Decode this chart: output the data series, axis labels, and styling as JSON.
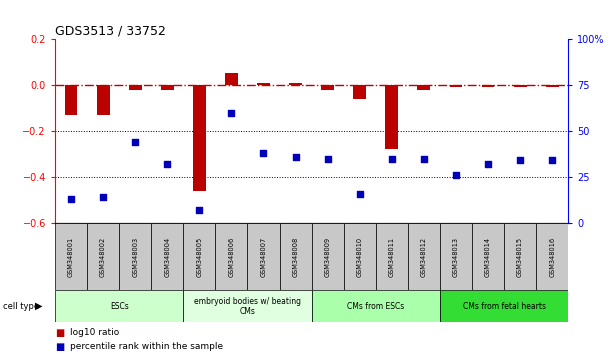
{
  "title": "GDS3513 / 33752",
  "samples": [
    "GSM348001",
    "GSM348002",
    "GSM348003",
    "GSM348004",
    "GSM348005",
    "GSM348006",
    "GSM348007",
    "GSM348008",
    "GSM348009",
    "GSM348010",
    "GSM348011",
    "GSM348012",
    "GSM348013",
    "GSM348014",
    "GSM348015",
    "GSM348016"
  ],
  "log10_ratio": [
    -0.13,
    -0.13,
    -0.02,
    -0.02,
    -0.46,
    0.05,
    0.01,
    0.01,
    -0.02,
    -0.06,
    -0.28,
    -0.02,
    -0.01,
    -0.01,
    -0.01,
    -0.01
  ],
  "percentile_rank": [
    13,
    14,
    44,
    32,
    7,
    60,
    38,
    36,
    35,
    16,
    35,
    35,
    26,
    32,
    34,
    34
  ],
  "cell_types": [
    {
      "label": "ESCs",
      "start": 0,
      "end": 3,
      "color": "#CCFFCC"
    },
    {
      "label": "embryoid bodies w/ beating\nCMs",
      "start": 4,
      "end": 7,
      "color": "#E8FFE8"
    },
    {
      "label": "CMs from ESCs",
      "start": 8,
      "end": 11,
      "color": "#CCFFCC"
    },
    {
      "label": "CMs from fetal hearts",
      "start": 12,
      "end": 15,
      "color": "#44EE44"
    }
  ],
  "ylim_left": [
    -0.6,
    0.2
  ],
  "ylim_right": [
    0,
    100
  ],
  "bar_color": "#BB0000",
  "dot_color": "#0000BB",
  "background_color": "#FFFFFF",
  "sample_bg": "#C8C8C8",
  "yticks_left": [
    -0.6,
    -0.4,
    -0.2,
    0.0,
    0.2
  ],
  "yticks_right": [
    0,
    25,
    50,
    75,
    100
  ]
}
